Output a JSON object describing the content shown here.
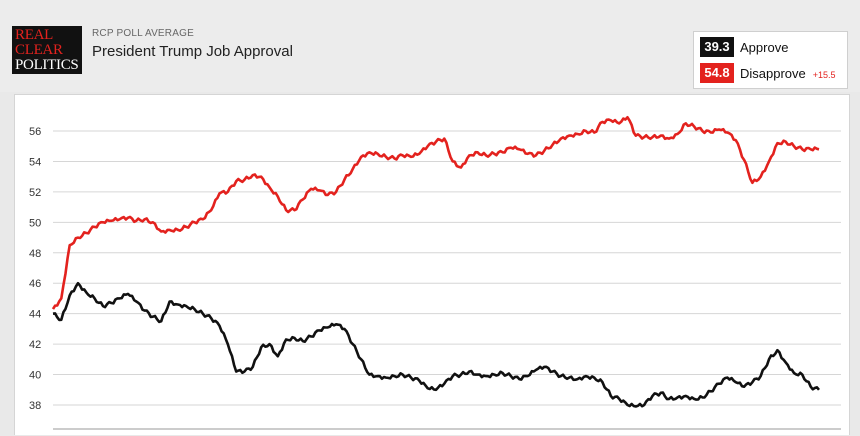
{
  "header": {
    "logo_lines": [
      "REAL",
      "CLEAR",
      "POLITICS"
    ],
    "subtitle": "RCP POLL AVERAGE",
    "title": "President Trump Job Approval"
  },
  "legend": {
    "approve": {
      "value": "39.3",
      "label": "Approve",
      "color": "#111111"
    },
    "disapprove": {
      "value": "54.8",
      "label": "Disapprove",
      "color": "#e3221e"
    },
    "spread": "+15.5"
  },
  "chart_data": {
    "type": "line",
    "title": "President Trump Job Approval",
    "xlabel": "",
    "ylabel": "",
    "ylim": [
      37,
      57.5
    ],
    "yticks": [
      38,
      40,
      42,
      44,
      46,
      48,
      50,
      52,
      54,
      56
    ],
    "grid": true,
    "legend_position": "top-right",
    "x": [
      0,
      1,
      2,
      3,
      4,
      5,
      6,
      7,
      8,
      9,
      10,
      11,
      12,
      13,
      14,
      15,
      16,
      17,
      18,
      19,
      20,
      21,
      22,
      23,
      24,
      25,
      26,
      27,
      28,
      29,
      30,
      31,
      32,
      33,
      34,
      35,
      36,
      37,
      38,
      39,
      40,
      41,
      42,
      43,
      44,
      45,
      46,
      47,
      48,
      49,
      50,
      51,
      52,
      53,
      54,
      55,
      56,
      57,
      58,
      59,
      60,
      61,
      62,
      63,
      64,
      65,
      66,
      67,
      68,
      69,
      70,
      71,
      72,
      73,
      74,
      75,
      76,
      77,
      78,
      79,
      80,
      81,
      82,
      83,
      84,
      85,
      86,
      87,
      88,
      89,
      90,
      91,
      92,
      93,
      94,
      95,
      96,
      97,
      98,
      99,
      100
    ],
    "series": [
      {
        "name": "Approve",
        "color": "#111111",
        "values": [
          44.0,
          43.6,
          45.2,
          46.0,
          45.4,
          45.0,
          44.5,
          44.7,
          45.0,
          45.3,
          44.8,
          44.2,
          43.8,
          43.5,
          44.8,
          44.6,
          44.5,
          44.3,
          44.0,
          43.7,
          43.2,
          42.0,
          40.2,
          40.2,
          40.5,
          41.8,
          42.0,
          41.2,
          42.3,
          42.4,
          42.2,
          42.5,
          42.9,
          43.1,
          43.3,
          43.0,
          42.0,
          41.0,
          40.0,
          39.9,
          39.8,
          39.9,
          40.0,
          39.8,
          39.6,
          39.1,
          39.0,
          39.4,
          39.9,
          40.0,
          40.2,
          40.0,
          39.9,
          40.0,
          40.1,
          39.9,
          39.7,
          39.9,
          40.3,
          40.5,
          40.2,
          39.9,
          39.8,
          39.7,
          39.9,
          39.8,
          39.5,
          38.6,
          38.4,
          38.0,
          37.9,
          38.0,
          38.6,
          38.8,
          38.4,
          38.5,
          38.6,
          38.4,
          38.5,
          38.9,
          39.4,
          39.8,
          39.5,
          39.2,
          39.5,
          39.9,
          41.0,
          41.6,
          40.8,
          40.1,
          40.0,
          39.2,
          39.0,
          39.3,
          39.3,
          39.3,
          39.3,
          39.3,
          39.3,
          39.3,
          39.3
        ],
        "note": "trimmed"
      },
      {
        "name": "Disapprove",
        "color": "#e3221e",
        "values": [
          44.3,
          45.0,
          48.5,
          49.0,
          49.3,
          49.7,
          50.0,
          50.1,
          50.2,
          50.3,
          50.1,
          50.2,
          50.0,
          49.4,
          49.5,
          49.5,
          49.7,
          50.0,
          50.2,
          50.8,
          51.9,
          52.0,
          52.7,
          52.8,
          53.1,
          53.0,
          52.3,
          51.7,
          50.8,
          50.8,
          51.5,
          52.2,
          52.1,
          51.8,
          52.0,
          52.8,
          53.5,
          54.3,
          54.6,
          54.5,
          54.3,
          54.2,
          54.4,
          54.3,
          54.5,
          55.0,
          55.3,
          55.5,
          54.0,
          53.6,
          54.4,
          54.6,
          54.4,
          54.5,
          54.6,
          54.9,
          54.8,
          54.5,
          54.4,
          54.7,
          55.1,
          55.5,
          55.7,
          55.8,
          56.0,
          55.9,
          56.6,
          56.7,
          56.5,
          56.9,
          55.7,
          55.6,
          55.6,
          55.7,
          55.5,
          55.8,
          56.5,
          56.3,
          56.0,
          55.9,
          56.1,
          55.9,
          55.4,
          54.1,
          52.6,
          53.0,
          54.0,
          55.2,
          55.3,
          55.0,
          54.8,
          54.8,
          54.8,
          54.8,
          54.8,
          54.8,
          54.8,
          54.8,
          54.8,
          54.8,
          54.8
        ],
        "note": "trimmed"
      }
    ]
  }
}
